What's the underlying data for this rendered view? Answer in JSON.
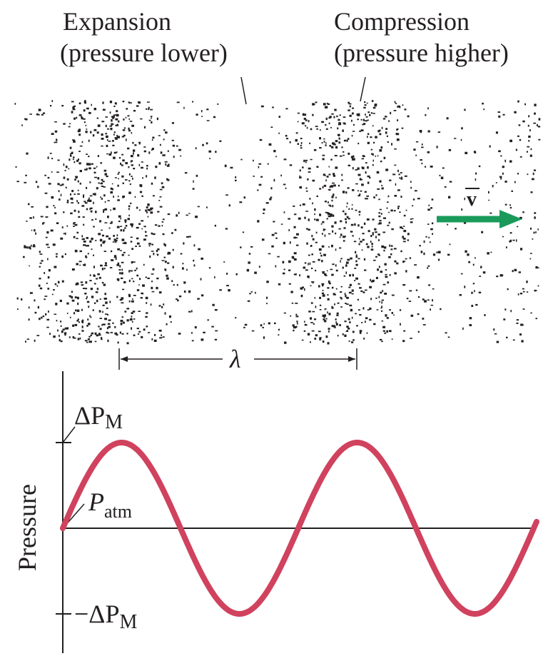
{
  "labels": {
    "expansion": "Expansion",
    "expansion_note": "(pressure lower)",
    "compression": "Compression",
    "compression_note": "(pressure higher)",
    "velocity": "v",
    "wavelength": "λ"
  },
  "graph": {
    "y_axis_label": "Pressure",
    "max_label": {
      "symbol": "ΔP",
      "subscript": "M"
    },
    "atm_label": {
      "symbol": "P",
      "subscript": "atm"
    },
    "min_label": {
      "symbol": "−ΔP",
      "subscript": "M"
    }
  }
}
